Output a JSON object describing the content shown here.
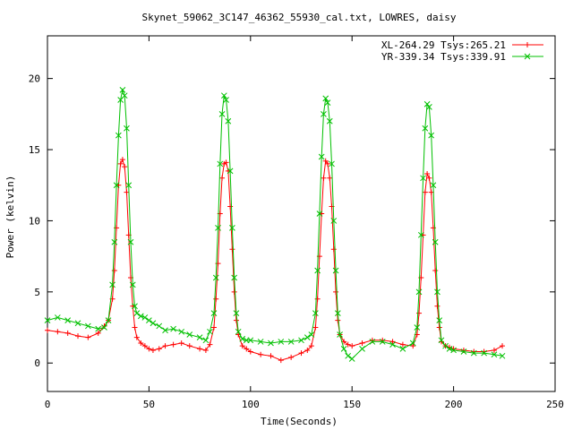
{
  "chart_data": {
    "type": "line",
    "title": "Skynet_59062_3C147_46362_55930_cal.txt, LOWRES, daisy",
    "xlabel": "Time(Seconds)",
    "ylabel": "Power (kelvin)",
    "xlim": [
      0,
      250
    ],
    "ylim": [
      -2,
      23
    ],
    "xticks": [
      0,
      50,
      100,
      150,
      200,
      250
    ],
    "yticks": [
      0,
      5,
      10,
      15,
      20
    ],
    "grid": false,
    "legend_position": "top-right",
    "series": [
      {
        "name": "XL-264.29 Tsys:265.21",
        "color": "#ff0000",
        "marker": "plus",
        "x": [
          0,
          5,
          10,
          15,
          20,
          25,
          28,
          30,
          32,
          33,
          34,
          35,
          36,
          37,
          38,
          39,
          40,
          41,
          42,
          43,
          44,
          46,
          48,
          50,
          52,
          55,
          58,
          62,
          66,
          70,
          75,
          78,
          80,
          82,
          83,
          84,
          85,
          86,
          87,
          88,
          89,
          90,
          91,
          92,
          93,
          94,
          96,
          98,
          100,
          105,
          110,
          115,
          120,
          125,
          128,
          130,
          132,
          133,
          134,
          135,
          136,
          137,
          138,
          139,
          140,
          141,
          142,
          143,
          144,
          146,
          148,
          150,
          155,
          160,
          165,
          170,
          175,
          180,
          182,
          183,
          184,
          185,
          186,
          187,
          188,
          189,
          190,
          191,
          192,
          193,
          194,
          196,
          198,
          200,
          205,
          210,
          215,
          220,
          224
        ],
        "y": [
          2.3,
          2.2,
          2.1,
          1.9,
          1.8,
          2.1,
          2.6,
          3.0,
          4.5,
          6.5,
          9.5,
          12.5,
          14.0,
          14.3,
          13.8,
          12.0,
          9.0,
          6.0,
          4.0,
          2.5,
          1.8,
          1.4,
          1.2,
          1.0,
          0.9,
          1.0,
          1.2,
          1.3,
          1.4,
          1.2,
          1.0,
          0.9,
          1.3,
          2.5,
          4.5,
          7.0,
          10.5,
          13.0,
          14.0,
          14.1,
          13.5,
          11.0,
          8.0,
          5.0,
          3.0,
          2.0,
          1.2,
          1.0,
          0.8,
          0.6,
          0.5,
          0.2,
          0.4,
          0.7,
          0.9,
          1.2,
          2.5,
          4.5,
          7.5,
          10.5,
          13.0,
          14.2,
          14.0,
          13.0,
          11.0,
          8.0,
          5.0,
          3.0,
          2.0,
          1.5,
          1.3,
          1.2,
          1.4,
          1.6,
          1.6,
          1.5,
          1.3,
          1.2,
          2.0,
          3.5,
          6.0,
          9.0,
          12.0,
          13.3,
          13.0,
          12.0,
          9.5,
          6.5,
          4.0,
          2.5,
          1.5,
          1.2,
          1.1,
          1.0,
          0.9,
          0.8,
          0.8,
          0.9,
          1.2
        ]
      },
      {
        "name": "YR-339.34 Tsys:339.91",
        "color": "#00c000",
        "marker": "cross",
        "x": [
          0,
          5,
          10,
          15,
          20,
          25,
          28,
          30,
          32,
          33,
          34,
          35,
          36,
          37,
          38,
          39,
          40,
          41,
          42,
          43,
          44,
          46,
          48,
          50,
          52,
          55,
          58,
          62,
          66,
          70,
          75,
          78,
          80,
          82,
          83,
          84,
          85,
          86,
          87,
          88,
          89,
          90,
          91,
          92,
          93,
          94,
          96,
          98,
          100,
          105,
          110,
          115,
          120,
          125,
          128,
          130,
          132,
          133,
          134,
          135,
          136,
          137,
          138,
          139,
          140,
          141,
          142,
          143,
          144,
          146,
          148,
          150,
          155,
          160,
          165,
          170,
          175,
          180,
          182,
          183,
          184,
          185,
          186,
          187,
          188,
          189,
          190,
          191,
          192,
          193,
          194,
          196,
          198,
          200,
          205,
          210,
          215,
          220,
          224
        ],
        "y": [
          3.0,
          3.2,
          3.0,
          2.8,
          2.6,
          2.4,
          2.5,
          3.0,
          5.5,
          8.5,
          12.5,
          16.0,
          18.5,
          19.2,
          18.8,
          16.5,
          12.5,
          8.5,
          5.5,
          4.0,
          3.5,
          3.3,
          3.2,
          3.0,
          2.8,
          2.6,
          2.3,
          2.4,
          2.2,
          2.0,
          1.8,
          1.6,
          2.2,
          3.5,
          6.0,
          9.5,
          14.0,
          17.5,
          18.8,
          18.5,
          17.0,
          13.5,
          9.5,
          6.0,
          3.5,
          2.2,
          1.7,
          1.6,
          1.6,
          1.5,
          1.4,
          1.5,
          1.5,
          1.6,
          1.8,
          2.0,
          3.5,
          6.5,
          10.5,
          14.5,
          17.5,
          18.6,
          18.3,
          17.0,
          14.0,
          10.0,
          6.5,
          3.5,
          2.0,
          1.0,
          0.5,
          0.3,
          1.0,
          1.5,
          1.5,
          1.3,
          1.0,
          1.4,
          2.5,
          5.0,
          9.0,
          13.0,
          16.5,
          18.2,
          18.0,
          16.0,
          12.5,
          8.5,
          5.0,
          3.0,
          1.6,
          1.2,
          1.0,
          0.9,
          0.8,
          0.7,
          0.7,
          0.6,
          0.5
        ]
      }
    ]
  }
}
